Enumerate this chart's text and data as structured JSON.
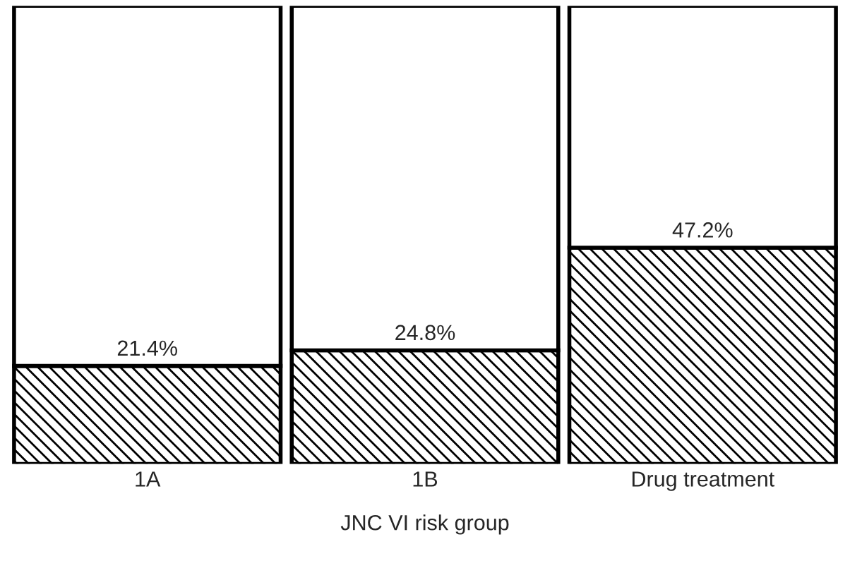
{
  "chart_data": {
    "type": "bar",
    "stacked": true,
    "xlabel": "JNC VI risk group",
    "categories": [
      "1A",
      "1B",
      "Drug treatment"
    ],
    "ylim": [
      0,
      100
    ],
    "tick_labels": "x",
    "legend": false,
    "grid": false,
    "series": [
      {
        "color": "#000000",
        "values": [
          21.4,
          24.8,
          47.2
        ],
        "value_labels": [
          "21.4%",
          "24.8%",
          "47.2%"
        ]
      },
      {
        "color": "#ffffff",
        "values": [
          78.6,
          75.2,
          52.8
        ]
      }
    ]
  }
}
